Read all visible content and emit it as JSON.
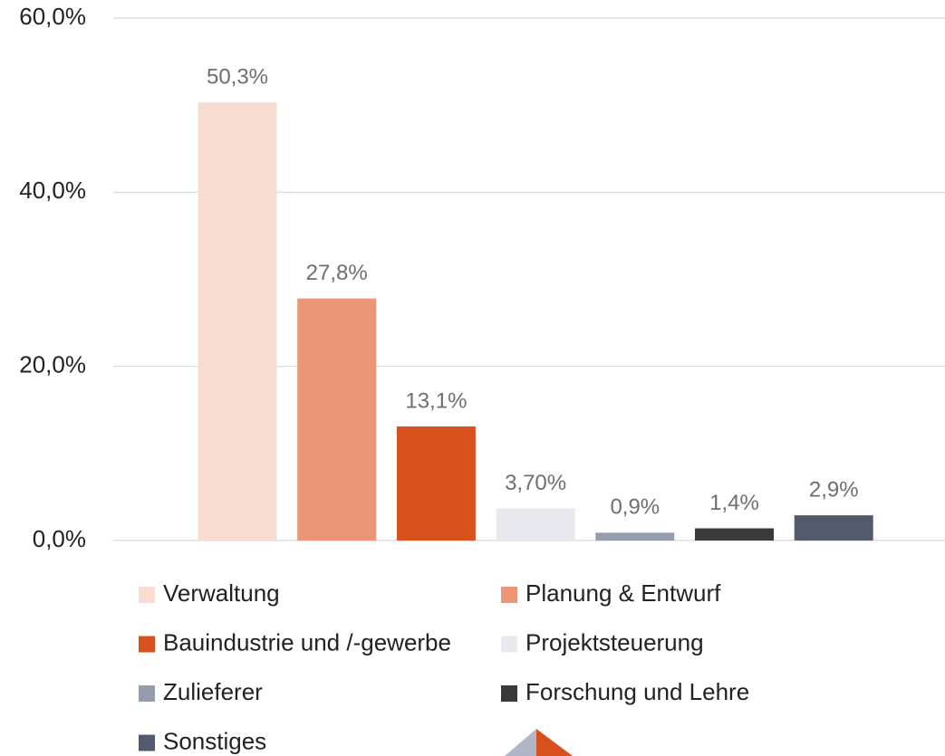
{
  "chart_data": {
    "type": "bar",
    "series": [
      {
        "name": "Verwaltung",
        "color": "#f9dcd1",
        "values": [
          50.3
        ],
        "value_labels": [
          "50,3%"
        ]
      },
      {
        "name": "Planung & Entwurf",
        "color": "#eb9777",
        "values": [
          27.8
        ],
        "value_labels": [
          "27,8%"
        ]
      },
      {
        "name": "Bauindustrie und /-gewerbe",
        "color": "#d9501f",
        "values": [
          13.1
        ],
        "value_labels": [
          "13,1%"
        ]
      },
      {
        "name": "Projektsteuerung",
        "color": "#e8e9ee",
        "values": [
          3.7
        ],
        "value_labels": [
          "3,70%"
        ]
      },
      {
        "name": "Zulieferer",
        "color": "#959dad",
        "values": [
          0.9
        ],
        "value_labels": [
          "0,9%"
        ]
      },
      {
        "name": "Forschung und Lehre",
        "color": "#3a3a3a",
        "values": [
          1.4
        ],
        "value_labels": [
          "1,4%"
        ]
      },
      {
        "name": "Sonstiges",
        "color": "#525b6e",
        "values": [
          2.9
        ],
        "value_labels": [
          "2,9%"
        ]
      }
    ],
    "ylim": [
      0,
      60
    ],
    "yticks": [
      {
        "value": 0,
        "label": "0,0%"
      },
      {
        "value": 20,
        "label": "20,0%"
      },
      {
        "value": 40,
        "label": "40,0%"
      },
      {
        "value": 60,
        "label": "60,0%"
      }
    ],
    "grid": true
  }
}
